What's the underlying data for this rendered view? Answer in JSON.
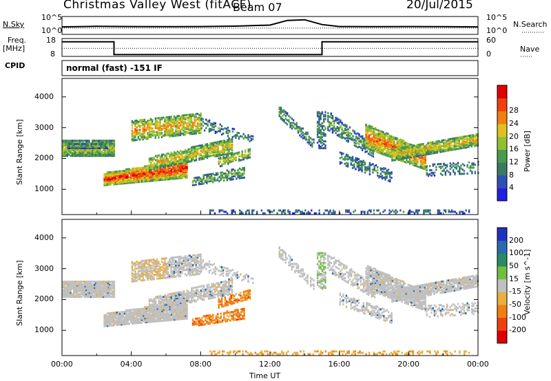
{
  "header": {
    "title": "Christmas Valley West (fitACF)",
    "beam": "Beam 07",
    "date": "20/Jul/2015"
  },
  "left_labels": {
    "nsky": "N.Sky",
    "freq_line1": "Freq.",
    "freq_line2": "[MHz]",
    "cpid": "CPID"
  },
  "right_labels": {
    "nsearch": "N.Search",
    "nave": "Nave"
  },
  "cpid_text": "normal (fast) -151 IF",
  "colors": {
    "power_scale": [
      "#2020e0",
      "#3050b8",
      "#3a7a60",
      "#4a9a50",
      "#90c030",
      "#e0c020",
      "#f08010",
      "#f04010",
      "#e00000"
    ],
    "velocity_scale": [
      "#2030c0",
      "#2a6ab0",
      "#2a8a60",
      "#70c040",
      "#c0c0c0",
      "#e8b040",
      "#f08010",
      "#f04010",
      "#e00000"
    ],
    "noise_gray": "#c0c0c0"
  },
  "chart_data": [
    {
      "type": "line",
      "name": "noise-panel",
      "x_ticks": [
        "00:00",
        "04:00",
        "08:00",
        "12:00",
        "16:00",
        "20:00",
        "00:00"
      ],
      "left_axis_ticks": [
        "10^5",
        "10^0"
      ],
      "right_axis_ticks": [
        "10^5",
        "10^0"
      ],
      "series": [
        {
          "name": "N.Sky",
          "style": "solid",
          "x": [
            0,
            2,
            4,
            6,
            8,
            10,
            12,
            13,
            14,
            15,
            16,
            18,
            20,
            22,
            24
          ],
          "values": [
            0.42,
            0.45,
            0.44,
            0.43,
            0.44,
            0.46,
            0.52,
            0.78,
            0.82,
            0.55,
            0.44,
            0.43,
            0.44,
            0.43,
            0.42
          ]
        },
        {
          "name": "N.Search",
          "style": "dotted",
          "x": [
            0,
            24
          ],
          "values": [
            0.35,
            0.35
          ]
        }
      ]
    },
    {
      "type": "line",
      "name": "freq-panel",
      "y_ticks_left": [
        "18",
        "8"
      ],
      "y_ticks_right": [
        "60",
        "0"
      ],
      "ylim_left": [
        8,
        18
      ],
      "series": [
        {
          "name": "Freq",
          "style": "solid",
          "x": [
            0,
            3.0,
            3.0,
            15.0,
            15.0,
            24
          ],
          "values": [
            16.2,
            16.2,
            9.0,
            9.0,
            16.2,
            16.2
          ]
        },
        {
          "name": "Nave",
          "style": "dotted",
          "x": [
            0,
            24
          ],
          "values": [
            12.5,
            12.5
          ]
        }
      ]
    },
    {
      "type": "heatmap",
      "name": "power-panel",
      "ylabel": "Slant Range [km]",
      "y_ticks": [
        "1000",
        "2000",
        "3000",
        "4000"
      ],
      "ylim": [
        180,
        4600
      ],
      "xlim": [
        0,
        24
      ],
      "colorbar_label": "Power [dB]",
      "colorbar_ticks": [
        "4",
        "8",
        "12",
        "16",
        "20",
        "24",
        "28"
      ],
      "colorbar_range": [
        0,
        32
      ]
    },
    {
      "type": "heatmap",
      "name": "velocity-panel",
      "ylabel": "Slant Range [km]",
      "xlabel": "Time UT",
      "y_ticks": [
        "1000",
        "2000",
        "3000",
        "4000"
      ],
      "x_ticks": [
        "00:00",
        "04:00",
        "08:00",
        "12:00",
        "16:00",
        "20:00",
        "00:00"
      ],
      "ylim": [
        180,
        4600
      ],
      "xlim": [
        0,
        24
      ],
      "colorbar_label": "Velocity [m s^-1]",
      "colorbar_ticks": [
        "200",
        "100",
        "50",
        "15",
        "-15",
        "-50",
        "-100",
        "-200"
      ],
      "colorbar_range": [
        -250,
        250
      ]
    }
  ]
}
